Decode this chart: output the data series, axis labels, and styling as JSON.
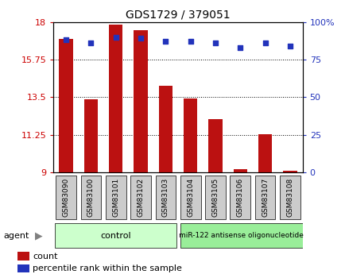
{
  "title": "GDS1729 / 379051",
  "categories": [
    "GSM83090",
    "GSM83100",
    "GSM83101",
    "GSM83102",
    "GSM83103",
    "GSM83104",
    "GSM83105",
    "GSM83106",
    "GSM83107",
    "GSM83108"
  ],
  "bar_values": [
    17.0,
    13.4,
    17.85,
    17.5,
    14.2,
    13.45,
    12.2,
    9.2,
    11.3,
    9.1
  ],
  "bar_base": 9.0,
  "blue_values": [
    88,
    86,
    90,
    89,
    87,
    87,
    86,
    83,
    86,
    84
  ],
  "ylim_left": [
    9,
    18
  ],
  "ylim_right": [
    0,
    100
  ],
  "yticks_left": [
    9,
    11.25,
    13.5,
    15.75,
    18
  ],
  "yticks_right": [
    0,
    25,
    50,
    75,
    100
  ],
  "bar_color": "#bb1111",
  "blue_color": "#2233bb",
  "control_label": "control",
  "treatment_label": "miR-122 antisense oligonucleotide",
  "control_color": "#ccffcc",
  "treatment_color": "#99ee99",
  "legend_count": "count",
  "legend_pct": "percentile rank within the sample",
  "agent_label": "agent",
  "tick_label_color_left": "#cc0000",
  "tick_label_color_right": "#2233bb",
  "tick_bg_color": "#cccccc",
  "n_control": 5,
  "n_total": 10
}
